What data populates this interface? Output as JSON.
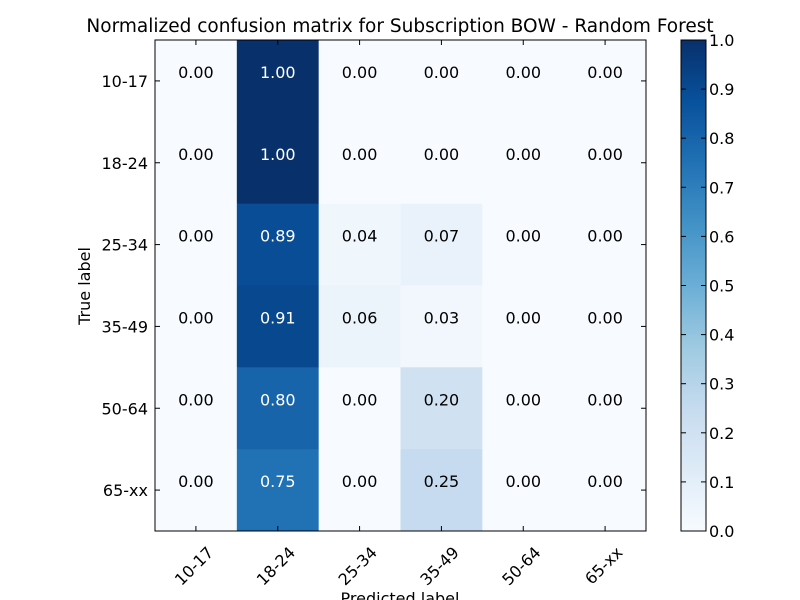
{
  "chart_data": {
    "type": "heatmap",
    "title": "Normalized confusion matrix for Subscription BOW - Random Forest",
    "xlabel": "Predicted label",
    "ylabel": "True label",
    "x_categories": [
      "10-17",
      "18-24",
      "25-34",
      "35-49",
      "50-64",
      "65-xx"
    ],
    "y_categories": [
      "10-17",
      "18-24",
      "25-34",
      "35-49",
      "50-64",
      "65-xx"
    ],
    "values": [
      [
        0.0,
        1.0,
        0.0,
        0.0,
        0.0,
        0.0
      ],
      [
        0.0,
        1.0,
        0.0,
        0.0,
        0.0,
        0.0
      ],
      [
        0.0,
        0.89,
        0.04,
        0.07,
        0.0,
        0.0
      ],
      [
        0.0,
        0.91,
        0.06,
        0.03,
        0.0,
        0.0
      ],
      [
        0.0,
        0.8,
        0.0,
        0.2,
        0.0,
        0.0
      ],
      [
        0.0,
        0.75,
        0.0,
        0.25,
        0.0,
        0.0
      ]
    ],
    "cell_labels": [
      [
        "0.00",
        "1.00",
        "0.00",
        "0.00",
        "0.00",
        "0.00"
      ],
      [
        "0.00",
        "1.00",
        "0.00",
        "0.00",
        "0.00",
        "0.00"
      ],
      [
        "0.00",
        "0.89",
        "0.04",
        "0.07",
        "0.00",
        "0.00"
      ],
      [
        "0.00",
        "0.91",
        "0.06",
        "0.03",
        "0.00",
        "0.00"
      ],
      [
        "0.00",
        "0.80",
        "0.00",
        "0.20",
        "0.00",
        "0.00"
      ],
      [
        "0.00",
        "0.75",
        "0.00",
        "0.25",
        "0.00",
        "0.00"
      ]
    ],
    "colorbar": {
      "range": [
        0.0,
        1.0
      ],
      "ticks": [
        0.0,
        0.1,
        0.2,
        0.3,
        0.4,
        0.5,
        0.6,
        0.7,
        0.8,
        0.9,
        1.0
      ],
      "tick_labels": [
        "0.0",
        "0.1",
        "0.2",
        "0.3",
        "0.4",
        "0.5",
        "0.6",
        "0.7",
        "0.8",
        "0.9",
        "1.0"
      ]
    },
    "colormap": "Blues",
    "colormap_stops": [
      "#f7fbff",
      "#deebf7",
      "#c6dbef",
      "#9ecae1",
      "#6baed6",
      "#4292c6",
      "#2171b5",
      "#08519c",
      "#08306b"
    ],
    "grid": false
  }
}
